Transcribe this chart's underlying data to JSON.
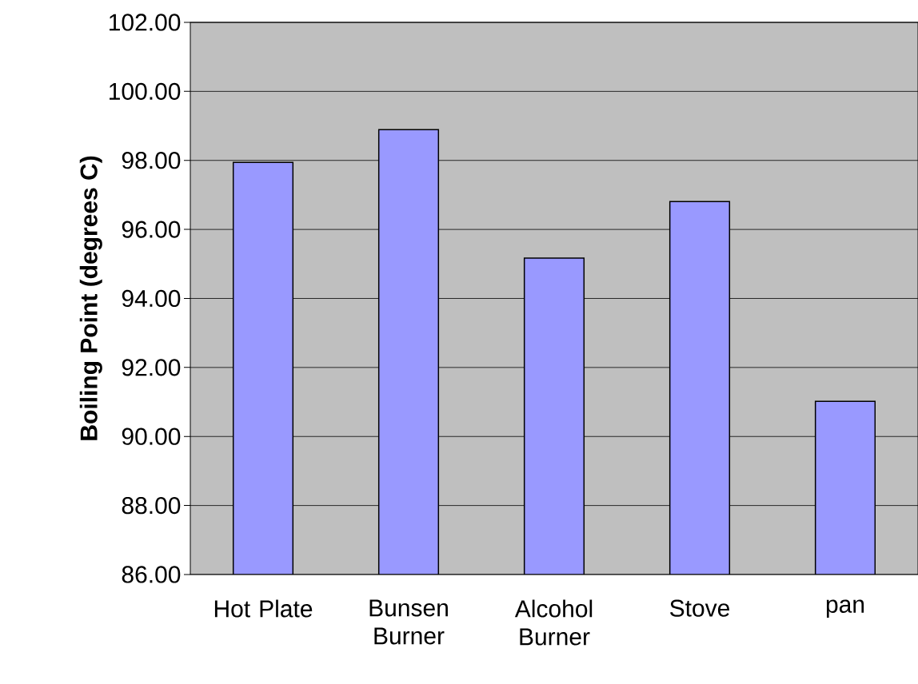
{
  "chart_data": {
    "type": "bar",
    "ylabel": "Boiling Point (degrees C)",
    "categories": [
      "Hot Plate",
      "Bunsen Burner",
      "Alcohol Burner",
      "Stove",
      "pan"
    ],
    "values": [
      97.94,
      98.89,
      95.17,
      96.81,
      91.02
    ],
    "color": "#9999ff",
    "ylim": [
      86,
      102
    ],
    "yticks": [
      {
        "value": 86,
        "label": "86.00"
      },
      {
        "value": 88,
        "label": "88.00"
      },
      {
        "value": 90,
        "label": "90.00"
      },
      {
        "value": 92,
        "label": "92.00"
      },
      {
        "value": 94,
        "label": "94.00"
      },
      {
        "value": 96,
        "label": "96.00"
      },
      {
        "value": 98,
        "label": "98.00"
      },
      {
        "value": 100,
        "label": "100.00"
      },
      {
        "value": 102,
        "label": "102.00"
      }
    ],
    "grid": "y"
  }
}
